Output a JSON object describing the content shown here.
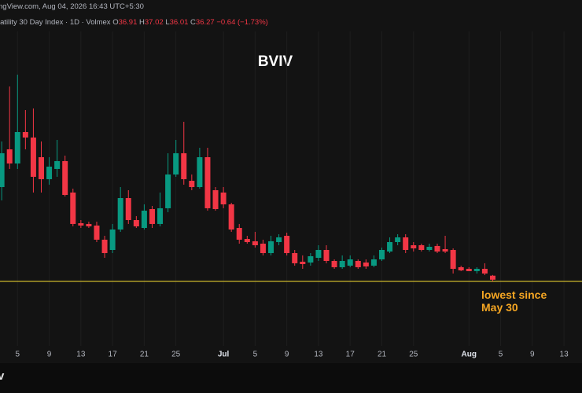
{
  "header": {
    "source_line": "ngView.com, Aug 04, 2026 16:43 UTC+5:30",
    "symbol_line": "latility 30 Day Index · 1D · Volmex",
    "ohlc_prefixes": [
      "O",
      "H",
      "L",
      "C"
    ],
    "change_label": "−0.64 (−1.73%)"
  },
  "footer": {
    "logo_text": "v"
  },
  "chart_data": {
    "type": "candlestick",
    "title": "BVIV",
    "categories": [
      null,
      null,
      null,
      null,
      "5",
      null,
      null,
      null,
      "9",
      null,
      null,
      null,
      "13",
      null,
      null,
      null,
      "17",
      null,
      null,
      null,
      "21",
      null,
      null,
      null,
      "25",
      null,
      null,
      null,
      null,
      null,
      "Jul",
      null,
      null,
      null,
      "5",
      null,
      null,
      null,
      "9",
      null,
      null,
      null,
      "13",
      null,
      null,
      null,
      "17",
      null,
      null,
      null,
      "21",
      null,
      null,
      null,
      "25",
      null,
      null,
      null,
      null,
      null,
      null,
      "Aug",
      null,
      null,
      null,
      "5",
      null,
      null,
      null,
      "9",
      null,
      null,
      null,
      "13"
    ],
    "open": [
      null,
      null,
      51.0,
      57.0,
      54.75,
      59.75,
      58.88,
      55.75,
      52.25,
      53.88,
      55.13,
      50.13,
      45.25,
      45.13,
      44.88,
      42.63,
      41.0,
      44.25,
      49.25,
      45.75,
      44.5,
      47.5,
      45.13,
      47.63,
      53.0,
      56.38,
      52.0,
      51.0,
      55.75,
      50.5,
      50.13,
      48.25,
      44.5,
      42.75,
      42.38,
      42.0,
      40.5,
      42.25,
      43.25,
      40.5,
      39.13,
      39.0,
      39.75,
      41.0,
      39.25,
      38.25,
      38.5,
      39.25,
      39.0,
      38.5,
      39.5,
      40.75,
      42.25,
      43.0,
      41.75,
      41.75,
      41.0,
      41.63,
      41.13,
      41.0,
      38.25,
      38.0,
      37.63,
      38.0,
      36.91,
      null,
      null,
      null,
      null,
      null,
      null,
      null,
      null,
      null
    ],
    "high": [
      null,
      null,
      58.25,
      67.0,
      68.88,
      63.25,
      63.5,
      58.25,
      55.75,
      58.5,
      56.0,
      50.75,
      45.75,
      45.5,
      45.5,
      43.25,
      45.13,
      51.0,
      50.5,
      46.38,
      48.25,
      48.0,
      50.13,
      56.38,
      58.5,
      61.38,
      53.0,
      57.25,
      57.25,
      51.0,
      51.0,
      48.5,
      45.13,
      43.25,
      43.88,
      42.63,
      43.25,
      43.5,
      43.75,
      41.0,
      40.13,
      40.5,
      41.75,
      41.75,
      39.5,
      40.13,
      40.13,
      39.5,
      39.5,
      40.13,
      41.38,
      43.0,
      43.5,
      43.5,
      42.25,
      42.0,
      42.0,
      42.0,
      43.25,
      41.25,
      38.5,
      38.25,
      38.25,
      38.88,
      37.02,
      null,
      null,
      null,
      null,
      null,
      null,
      null,
      null,
      null
    ],
    "low": [
      null,
      null,
      48.88,
      53.88,
      53.88,
      57.0,
      50.13,
      50.13,
      51.38,
      52.63,
      49.5,
      44.75,
      44.5,
      44.5,
      42.25,
      39.75,
      40.5,
      43.88,
      45.13,
      44.5,
      44.25,
      44.5,
      44.75,
      47.0,
      52.63,
      51.38,
      50.5,
      50.75,
      47.25,
      47.25,
      47.63,
      43.88,
      42.0,
      42.0,
      41.38,
      40.13,
      40.13,
      41.75,
      40.13,
      38.5,
      38.0,
      38.5,
      39.25,
      38.88,
      38.0,
      38.0,
      38.25,
      38.0,
      38.0,
      38.25,
      39.25,
      40.5,
      41.75,
      40.5,
      40.75,
      40.75,
      40.75,
      40.5,
      40.5,
      37.25,
      37.63,
      37.63,
      37.25,
      37.0,
      36.01,
      null,
      null,
      null,
      null,
      null,
      null,
      null,
      null,
      null
    ],
    "close": [
      null,
      null,
      56.38,
      54.75,
      59.75,
      58.88,
      52.63,
      52.25,
      54.25,
      55.13,
      49.75,
      45.13,
      44.88,
      44.75,
      42.63,
      40.5,
      44.25,
      49.25,
      45.75,
      44.75,
      47.25,
      45.13,
      47.63,
      53.0,
      56.38,
      52.25,
      51.0,
      55.75,
      47.63,
      47.5,
      48.25,
      44.25,
      42.63,
      42.25,
      41.75,
      40.5,
      42.38,
      43.0,
      40.5,
      38.88,
      38.75,
      40.0,
      41.0,
      39.25,
      38.25,
      39.25,
      39.5,
      38.25,
      38.38,
      39.5,
      41.0,
      42.25,
      43.0,
      41.0,
      41.25,
      41.0,
      41.5,
      40.75,
      40.75,
      38.0,
      37.75,
      37.63,
      38.0,
      37.25,
      36.27,
      null,
      null,
      null,
      null,
      null,
      null,
      null,
      null,
      null
    ],
    "up_color": "#089981",
    "down_color": "#f23645",
    "ylim": [
      25,
      80.75
    ],
    "grid": true,
    "reference_line": {
      "value": 36,
      "color": "#c9b52c",
      "label": "lowest since May 30",
      "label_color": "#f5a623"
    }
  }
}
